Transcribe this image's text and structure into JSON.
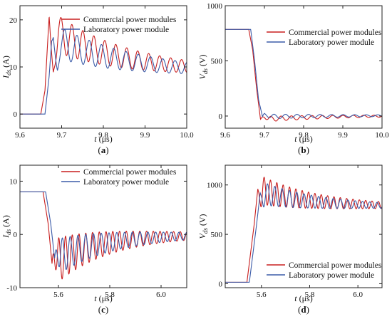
{
  "figure": {
    "panels": [
      {
        "id": "a",
        "label": "(a)",
        "xlabel": "t (μs)",
        "ylabel": "Ids (A)",
        "ylabel_main": "I",
        "ylabel_sub": "ds",
        "ylabel_unit": " (A)"
      },
      {
        "id": "b",
        "label": "(b)",
        "xlabel": "t (μs)",
        "ylabel": "Vds (V)",
        "ylabel_main": "V",
        "ylabel_sub": "ds",
        "ylabel_unit": " (V)"
      },
      {
        "id": "c",
        "label": "(c)",
        "xlabel": "t (μs)",
        "ylabel": "Ids (A)",
        "ylabel_main": "I",
        "ylabel_sub": "ds",
        "ylabel_unit": " (A)"
      },
      {
        "id": "d",
        "label": "(d)",
        "xlabel": "t (μs)",
        "ylabel": "Vds (V)",
        "ylabel_main": "V",
        "ylabel_sub": "ds",
        "ylabel_unit": " (V)"
      }
    ]
  },
  "colors": {
    "commercial": "#c81e1e",
    "laboratory": "#3b5ba8",
    "axis": "#222222"
  },
  "chart_data": [
    {
      "type": "line",
      "panel": "a",
      "xlabel": "t (μs)",
      "ylabel": "Ids (A)",
      "xlim": [
        9.6,
        10.0
      ],
      "ylim": [
        -3,
        23
      ],
      "xticks": [
        9.6,
        9.7,
        9.8,
        9.9,
        10.0
      ],
      "xtick_labels": [
        "9.6",
        "9.7",
        "9.8",
        "9.9",
        "10.0"
      ],
      "yticks": [
        0,
        10,
        20
      ],
      "ytick_labels": [
        "0",
        "10",
        "20"
      ],
      "legend": "top-right",
      "series": [
        {
          "name": "Commercial power modules",
          "color": "#c81e1e",
          "x": [
            9.6,
            9.65,
            9.66,
            9.665,
            9.67,
            9.672,
            9.68,
            9.7,
            9.75,
            9.8,
            9.85,
            9.9,
            9.95,
            10.0
          ],
          "y": [
            0,
            0,
            5,
            13,
            20.8,
            18,
            4,
            12.5,
            11.5,
            10.5,
            9.8,
            9.3,
            9.0,
            8.8
          ]
        },
        {
          "name": "Laboratory power module",
          "color": "#3b5ba8",
          "x": [
            9.6,
            9.66,
            9.67,
            9.676,
            9.68,
            9.69,
            9.7,
            9.75,
            9.8,
            9.85,
            9.9,
            9.95,
            10.0
          ],
          "y": [
            0,
            0,
            8,
            15.5,
            16,
            4.5,
            12.5,
            11.0,
            10.2,
            9.6,
            9.1,
            8.8,
            8.6
          ]
        }
      ]
    },
    {
      "type": "line",
      "panel": "b",
      "xlabel": "t (μs)",
      "ylabel": "Vds (V)",
      "xlim": [
        9.6,
        10.0
      ],
      "ylim": [
        -110,
        1000
      ],
      "xticks": [
        9.6,
        9.7,
        9.8,
        9.9,
        10.0
      ],
      "xtick_labels": [
        "9.6",
        "9.7",
        "9.8",
        "9.9",
        "10.0"
      ],
      "yticks": [
        0,
        500,
        1000
      ],
      "ytick_labels": [
        "0",
        "500",
        "1000"
      ],
      "legend": "top-right",
      "series": [
        {
          "name": "Commercial power modules",
          "color": "#c81e1e",
          "x": [
            9.6,
            9.66,
            9.67,
            9.68,
            9.69,
            9.7,
            9.75,
            9.8,
            9.9,
            10.0
          ],
          "y": [
            785,
            785,
            600,
            250,
            -30,
            20,
            30,
            15,
            8,
            5
          ]
        },
        {
          "name": "Laboratory power module",
          "color": "#3b5ba8",
          "x": [
            9.6,
            9.665,
            9.675,
            9.685,
            9.695,
            9.7,
            9.75,
            9.8,
            9.9,
            10.0
          ],
          "y": [
            785,
            785,
            500,
            150,
            -5,
            30,
            20,
            10,
            5,
            5
          ]
        }
      ]
    },
    {
      "type": "line",
      "panel": "c",
      "xlabel": "t (μs)",
      "ylabel": "Ids (A)",
      "xlim": [
        5.45,
        6.1
      ],
      "ylim": [
        -10,
        13
      ],
      "xticks": [
        5.6,
        5.8,
        6.0
      ],
      "xtick_labels": [
        "5.6",
        "5.8",
        "6.0"
      ],
      "yticks": [
        -10,
        0,
        10
      ],
      "ytick_labels": [
        "-10",
        "0",
        "10"
      ],
      "legend": "top-right",
      "series": [
        {
          "name": "Commercial power modules",
          "color": "#c81e1e",
          "x": [
            5.45,
            5.54,
            5.56,
            5.575,
            5.6,
            5.7,
            5.8,
            5.9,
            6.0,
            6.1
          ],
          "y": [
            8,
            8,
            2,
            -5.5,
            4,
            1.5,
            0.5,
            0.2,
            0.1,
            0
          ],
          "ylabel_note": ""
        },
        {
          "name": "Laboratory power module",
          "color": "#3b5ba8",
          "x": [
            5.45,
            5.55,
            5.57,
            5.585,
            5.61,
            5.7,
            5.8,
            5.9,
            6.0,
            6.1
          ],
          "y": [
            8,
            8,
            2,
            -4.5,
            3,
            1,
            0.3,
            0.1,
            0,
            0
          ]
        }
      ]
    },
    {
      "type": "line",
      "panel": "d",
      "xlabel": "t (μs)",
      "ylabel": "Vds (V)",
      "xlim": [
        5.45,
        6.1
      ],
      "ylim": [
        -40,
        1200
      ],
      "xticks": [
        5.6,
        5.8,
        6.0
      ],
      "xtick_labels": [
        "5.6",
        "5.8",
        "6.0"
      ],
      "yticks": [
        0,
        500,
        1000
      ],
      "ytick_labels": [
        "0",
        "500",
        "1000"
      ],
      "legend": "bottom-right",
      "series": [
        {
          "name": "Commercial power modules",
          "color": "#c81e1e",
          "x": [
            5.45,
            5.54,
            5.57,
            5.585,
            5.6,
            5.7,
            5.8,
            5.9,
            6.0,
            6.1
          ],
          "y": [
            15,
            15,
            600,
            960,
            700,
            860,
            810,
            790,
            785,
            780
          ]
        },
        {
          "name": "Laboratory power module",
          "color": "#3b5ba8",
          "x": [
            5.45,
            5.55,
            5.58,
            5.595,
            5.61,
            5.7,
            5.8,
            5.9,
            6.0,
            6.1
          ],
          "y": [
            15,
            15,
            600,
            920,
            720,
            840,
            800,
            785,
            780,
            780
          ]
        }
      ]
    }
  ]
}
